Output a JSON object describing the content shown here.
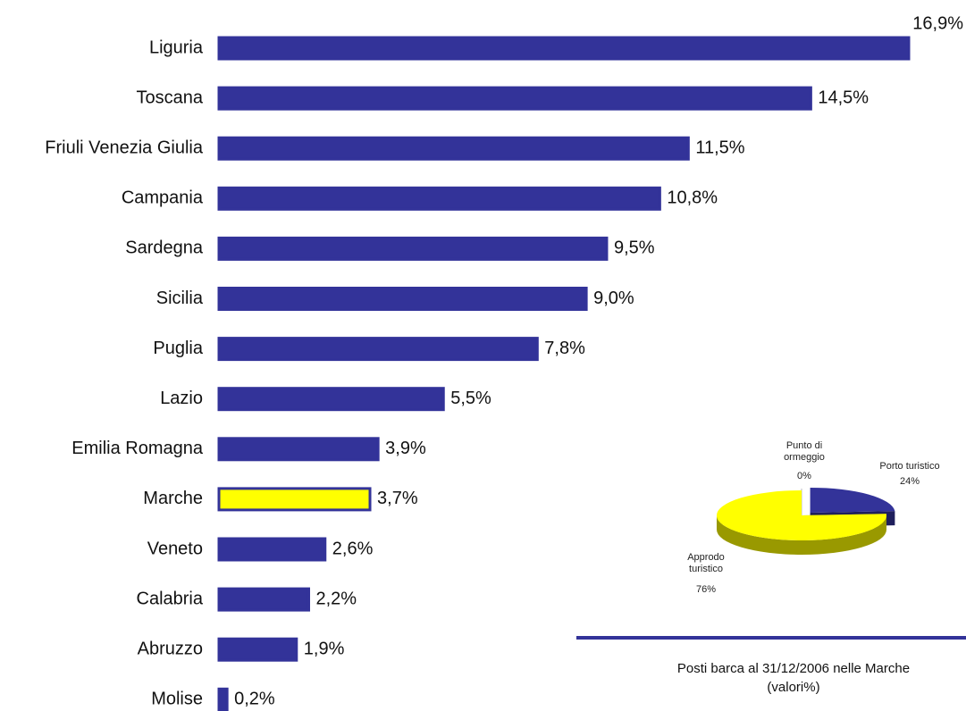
{
  "chart_data": [
    {
      "type": "barh",
      "categories": [
        "Liguria",
        "Toscana",
        "Friuli Venezia Giulia",
        "Campania",
        "Sardegna",
        "Sicilia",
        "Puglia",
        "Lazio",
        "Emilia Romagna",
        "Marche",
        "Veneto",
        "Calabria",
        "Abruzzo",
        "Molise"
      ],
      "values": [
        16.9,
        14.5,
        11.5,
        10.8,
        9.5,
        9.0,
        7.8,
        5.5,
        3.9,
        3.7,
        2.6,
        2.2,
        1.9,
        0.2
      ],
      "value_labels": [
        "16,9%",
        "14,5%",
        "11,5%",
        "10,8%",
        "9,5%",
        "9,0%",
        "7,8%",
        "5,5%",
        "3,9%",
        "3,7%",
        "2,6%",
        "2,2%",
        "1,9%",
        "0,2%"
      ],
      "colors": [
        "#333399",
        "#333399",
        "#333399",
        "#333399",
        "#333399",
        "#333399",
        "#333399",
        "#333399",
        "#333399",
        "#ffff00",
        "#333399",
        "#333399",
        "#333399",
        "#333399"
      ],
      "edgecolor": "#333399"
    },
    {
      "type": "pie3d",
      "title": "Posti barca al 31/12/2006 nelle Marche",
      "subtitle": "(valori%)",
      "categories": [
        "Punto di ormeggio",
        "Porto turistico",
        "Approdo turistico"
      ],
      "values": [
        0,
        24,
        76
      ],
      "value_labels": [
        "0%",
        "24%",
        "76%"
      ],
      "colors": [
        "#ffffff",
        "#333399",
        "#ffff00"
      ]
    }
  ]
}
